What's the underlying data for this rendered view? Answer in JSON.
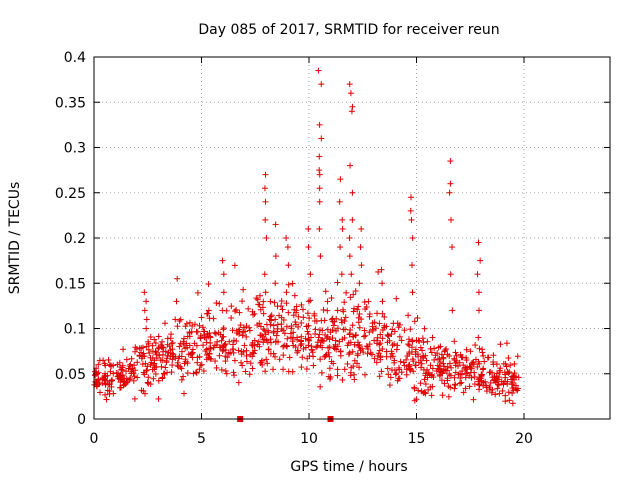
{
  "chart_data": {
    "type": "scatter",
    "title": "Day 085 of 2017, SRMTID for receiver reun",
    "xlabel": "GPS time / hours",
    "ylabel": "SRMTID / TECUs",
    "xlim": [
      0,
      24
    ],
    "ylim": [
      0,
      0.4
    ],
    "x_ticks": [
      "0",
      "5",
      "10",
      "15",
      "20"
    ],
    "y_ticks": [
      "0",
      "0.05",
      "0.1",
      "0.15",
      "0.2",
      "0.25",
      "0.3",
      "0.35",
      "0.4"
    ],
    "grid": true,
    "marker": "+",
    "color": "#e00000",
    "series": [
      {
        "name": "SRMTID",
        "envelope": [
          {
            "x": 0.0,
            "center": 0.042,
            "spread": 0.012
          },
          {
            "x": 1.0,
            "center": 0.045,
            "spread": 0.013
          },
          {
            "x": 2.0,
            "center": 0.055,
            "spread": 0.016
          },
          {
            "x": 3.0,
            "center": 0.065,
            "spread": 0.02
          },
          {
            "x": 4.0,
            "center": 0.075,
            "spread": 0.022
          },
          {
            "x": 5.0,
            "center": 0.085,
            "spread": 0.024
          },
          {
            "x": 6.0,
            "center": 0.08,
            "spread": 0.024
          },
          {
            "x": 7.0,
            "center": 0.085,
            "spread": 0.026
          },
          {
            "x": 8.0,
            "center": 0.095,
            "spread": 0.028
          },
          {
            "x": 9.0,
            "center": 0.085,
            "spread": 0.028
          },
          {
            "x": 10.0,
            "center": 0.09,
            "spread": 0.03
          },
          {
            "x": 11.0,
            "center": 0.085,
            "spread": 0.03
          },
          {
            "x": 12.0,
            "center": 0.09,
            "spread": 0.032
          },
          {
            "x": 13.0,
            "center": 0.085,
            "spread": 0.03
          },
          {
            "x": 14.0,
            "center": 0.075,
            "spread": 0.026
          },
          {
            "x": 15.0,
            "center": 0.065,
            "spread": 0.022
          },
          {
            "x": 16.0,
            "center": 0.055,
            "spread": 0.018
          },
          {
            "x": 17.0,
            "center": 0.055,
            "spread": 0.018
          },
          {
            "x": 18.0,
            "center": 0.05,
            "spread": 0.016
          },
          {
            "x": 19.0,
            "center": 0.045,
            "spread": 0.014
          },
          {
            "x": 19.8,
            "center": 0.04,
            "spread": 0.012
          }
        ],
        "spikes": [
          {
            "x": 2.4,
            "values": [
              0.1,
              0.11,
              0.12,
              0.13,
              0.14
            ]
          },
          {
            "x": 3.8,
            "values": [
              0.11,
              0.13,
              0.155
            ]
          },
          {
            "x": 6.0,
            "values": [
              0.12,
              0.14,
              0.16,
              0.175
            ]
          },
          {
            "x": 8.0,
            "values": [
              0.14,
              0.16,
              0.2,
              0.22,
              0.24,
              0.255,
              0.27
            ]
          },
          {
            "x": 8.4,
            "values": [
              0.15,
              0.18,
              0.215
            ]
          },
          {
            "x": 9.0,
            "values": [
              0.14,
              0.17,
              0.19,
              0.2
            ]
          },
          {
            "x": 10.0,
            "values": [
              0.13,
              0.16,
              0.19,
              0.21
            ]
          },
          {
            "x": 10.5,
            "values": [
              0.18,
              0.21,
              0.24,
              0.255,
              0.27,
              0.275,
              0.29,
              0.31,
              0.325,
              0.37,
              0.385
            ]
          },
          {
            "x": 11.5,
            "values": [
              0.16,
              0.19,
              0.21,
              0.22,
              0.24,
              0.265
            ]
          },
          {
            "x": 11.95,
            "values": [
              0.16,
              0.18,
              0.2,
              0.22,
              0.25,
              0.28,
              0.34,
              0.345,
              0.36,
              0.37
            ]
          },
          {
            "x": 12.4,
            "values": [
              0.15,
              0.17,
              0.19,
              0.21
            ]
          },
          {
            "x": 13.4,
            "values": [
              0.13,
              0.15,
              0.165
            ]
          },
          {
            "x": 14.8,
            "values": [
              0.14,
              0.17,
              0.2,
              0.22,
              0.23,
              0.245
            ]
          },
          {
            "x": 16.6,
            "values": [
              0.12,
              0.16,
              0.19,
              0.22,
              0.25,
              0.26,
              0.285
            ]
          },
          {
            "x": 17.9,
            "values": [
              0.12,
              0.14,
              0.16,
              0.175,
              0.195
            ]
          }
        ]
      }
    ],
    "axis_markers": [
      {
        "x": 6.8,
        "y": 0
      },
      {
        "x": 11.0,
        "y": 0
      }
    ]
  }
}
